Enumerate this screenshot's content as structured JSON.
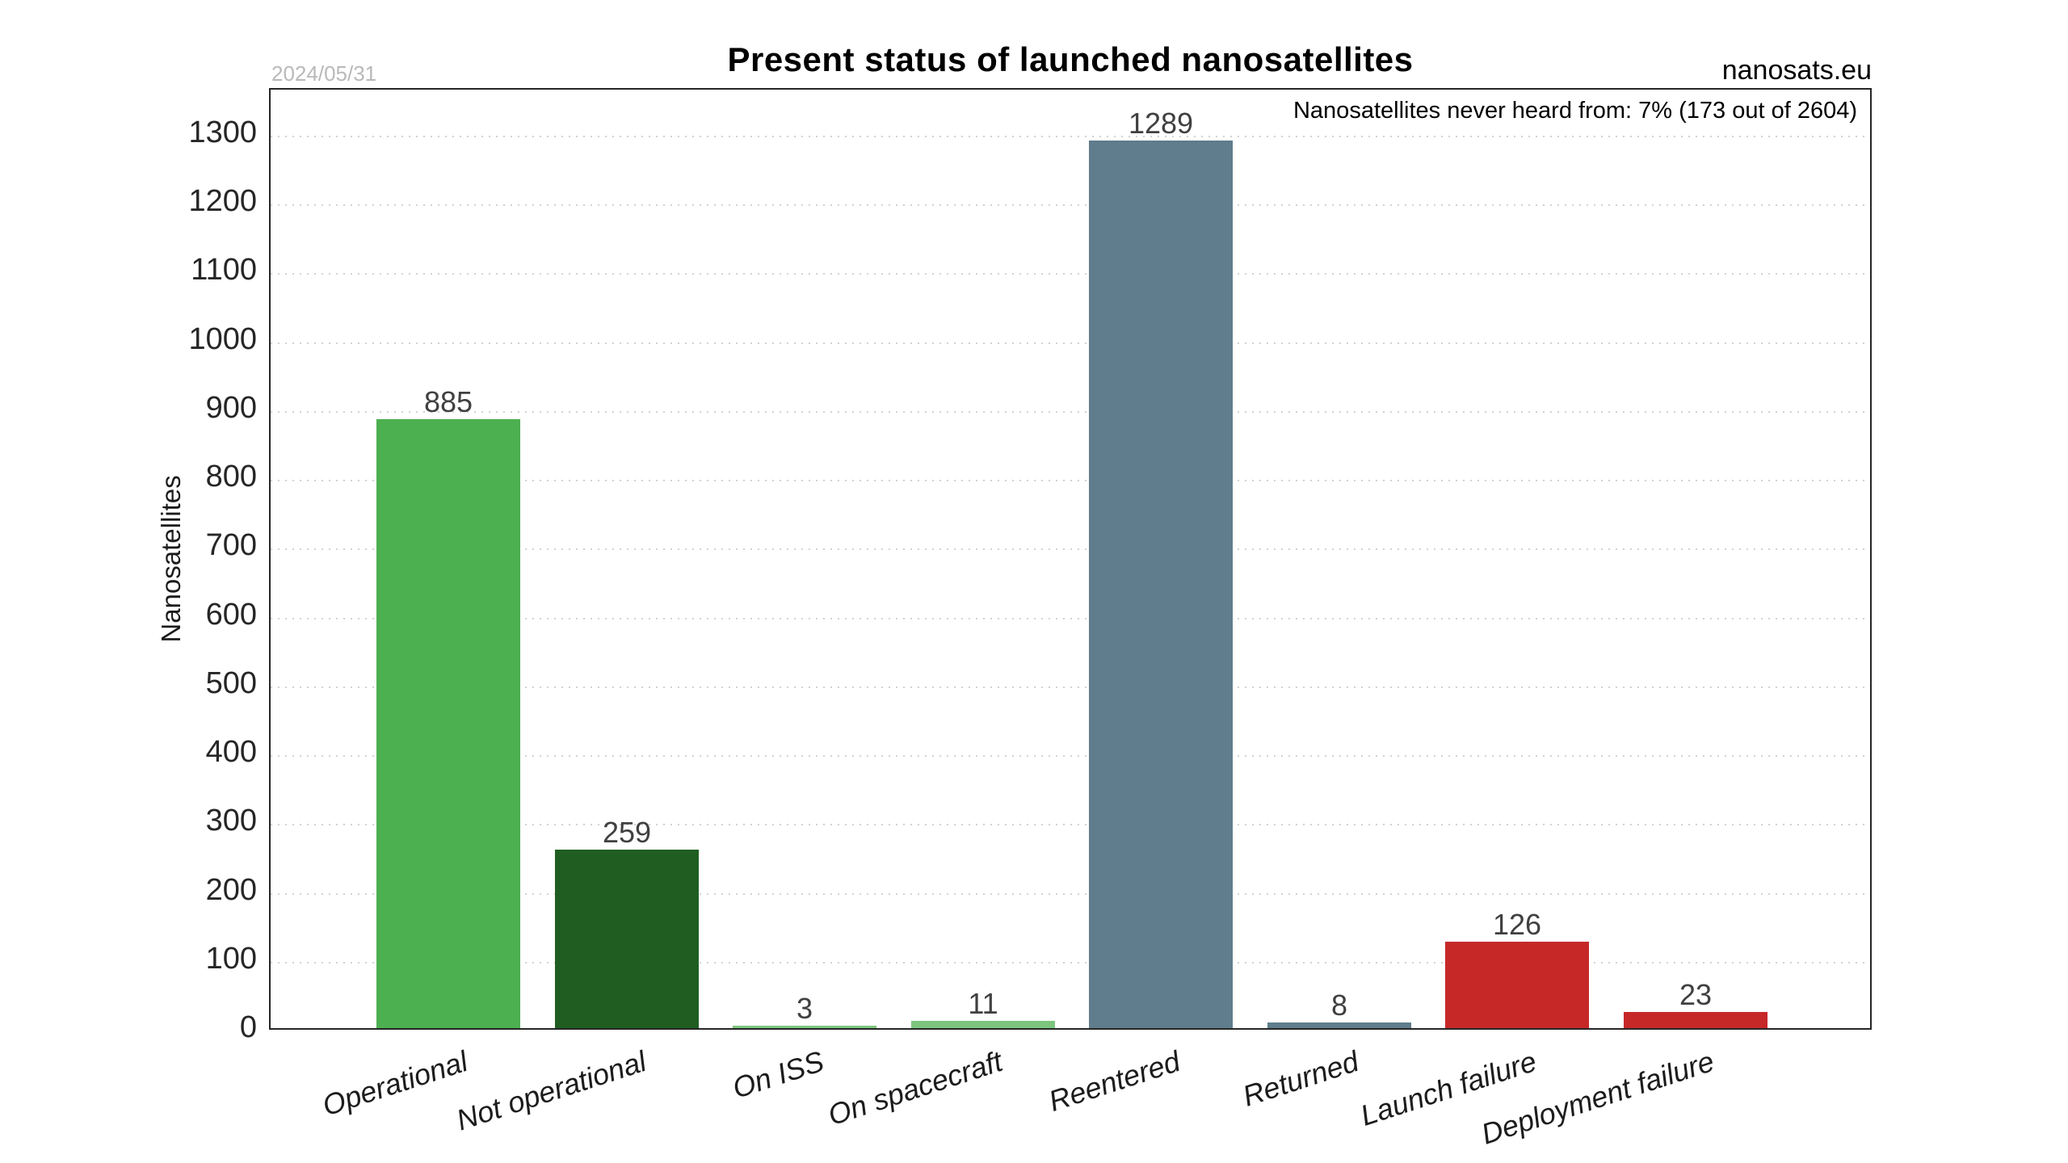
{
  "header": {
    "date_label": "2024/05/31",
    "title": "Present status of launched nanosatellites",
    "source_label": "nanosats.eu"
  },
  "chart_data": {
    "type": "bar",
    "title": "Present status of launched nanosatellites",
    "ylabel": "Nanosatellites",
    "xlabel": "",
    "annotation": "Nanosatellites never heard from: 7% (173 out of 2604)",
    "categories": [
      "Operational",
      "Not operational",
      "On ISS",
      "On spacecraft",
      "Reentered",
      "Returned",
      "Launch failure",
      "Deployment failure"
    ],
    "values": [
      885,
      259,
      3,
      11,
      1289,
      8,
      126,
      23
    ],
    "bar_colors": [
      "#4caf50",
      "#1f5e20",
      "#7dc57f",
      "#7dc57f",
      "#5f7d8c",
      "#5f7d8c",
      "#c62828",
      "#c62828"
    ],
    "total": 2604,
    "never_heard_count": 173,
    "never_heard_percent": "7%",
    "ylim": [
      0,
      1368
    ],
    "yticks": [
      0,
      100,
      200,
      300,
      400,
      500,
      600,
      700,
      800,
      900,
      1000,
      1100,
      1200,
      1300
    ],
    "grid": "horizontal-dotted",
    "legend_position": "none",
    "colors": {
      "grid": "#d2d2d2",
      "axis_border": "#262626",
      "value_label": "#404040",
      "date_label": "#b9b9b9"
    }
  }
}
